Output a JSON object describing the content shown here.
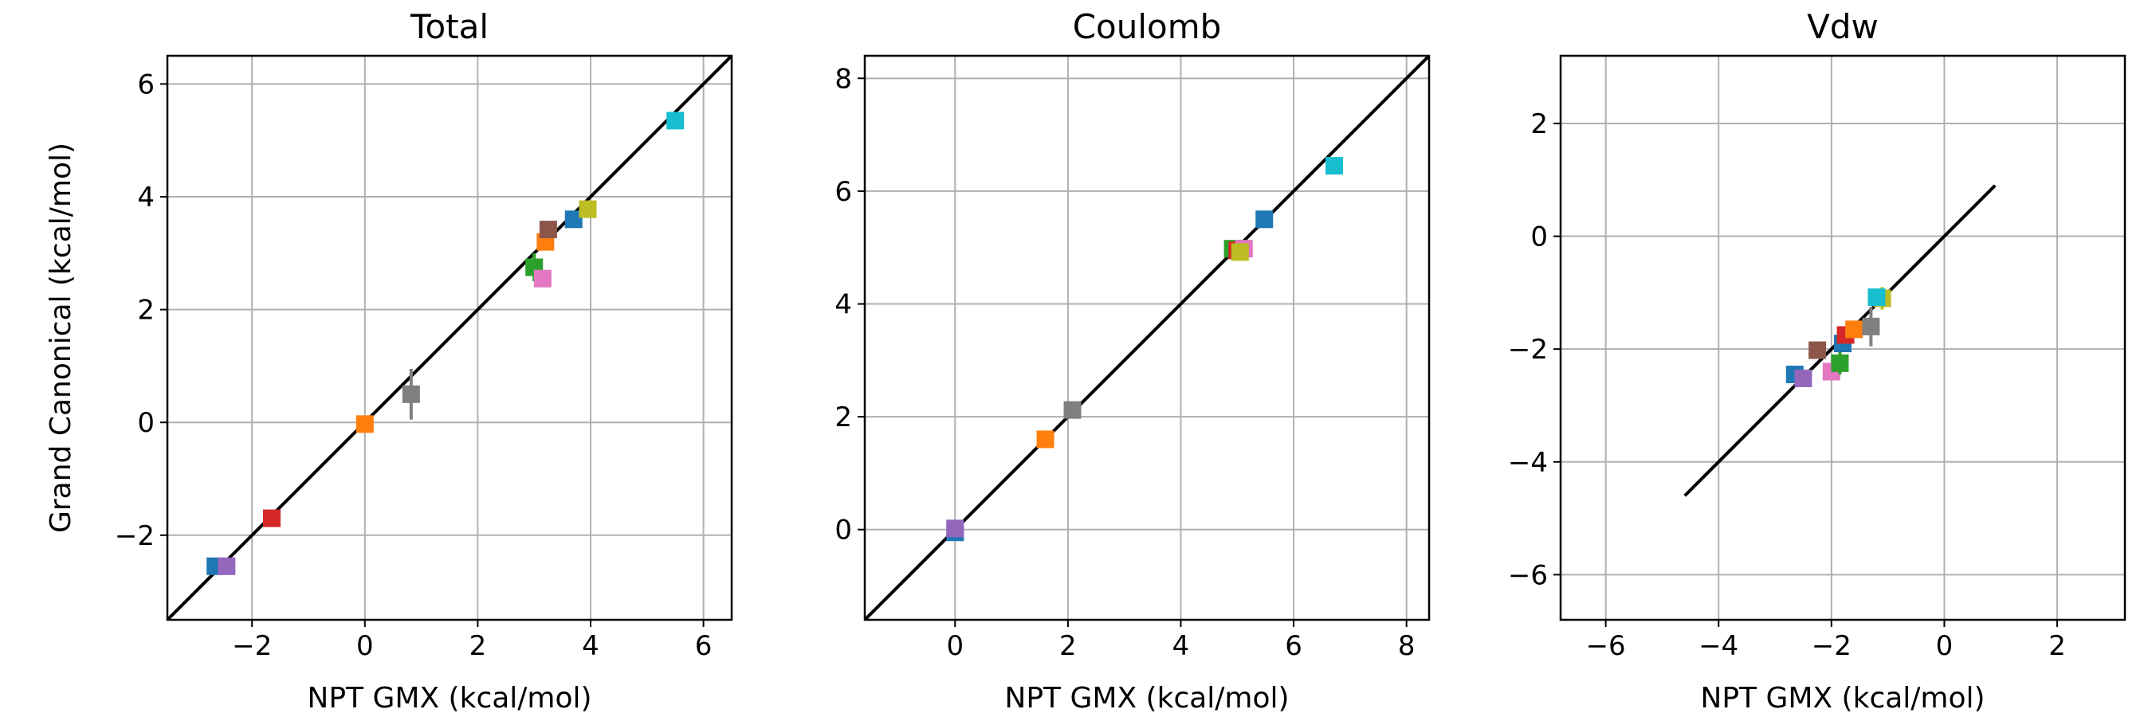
{
  "chart_data": [
    {
      "type": "scatter",
      "title": "Total",
      "xlabel": "NPT GMX (kcal/mol)",
      "ylabel": "Grand Canonical (kcal/mol)",
      "xlim": [
        -3.5,
        6.5
      ],
      "ylim": [
        -3.5,
        6.5
      ],
      "xticks": [
        -2,
        0,
        2,
        4,
        6
      ],
      "yticks": [
        -2,
        0,
        2,
        4,
        6
      ],
      "xtick_labels": [
        "−2",
        "0",
        "2",
        "4",
        "6"
      ],
      "ytick_labels": [
        "−2",
        "0",
        "2",
        "4",
        "6"
      ],
      "grid": true,
      "marker": "square",
      "reference_line": {
        "x": [
          -3.5,
          6.5
        ],
        "y": [
          -3.5,
          6.5
        ]
      },
      "points": [
        {
          "x": -2.65,
          "y": -2.55,
          "yerr": 0.05,
          "color": "#1f77b4"
        },
        {
          "x": -2.45,
          "y": -2.55,
          "yerr": 0.05,
          "color": "#9467bd"
        },
        {
          "x": -1.65,
          "y": -1.7,
          "yerr": 0.05,
          "color": "#d62728"
        },
        {
          "x": 0.0,
          "y": -0.03,
          "yerr": 0.05,
          "color": "#ff7f0e"
        },
        {
          "x": 0.82,
          "y": 0.5,
          "yerr": 0.45,
          "color": "#7f7f7f"
        },
        {
          "x": 3.0,
          "y": 2.75,
          "yerr": 0.25,
          "color": "#2ca02c"
        },
        {
          "x": 3.15,
          "y": 2.55,
          "yerr": 0.1,
          "color": "#e377c2"
        },
        {
          "x": 3.2,
          "y": 3.2,
          "yerr": 0.1,
          "color": "#ff7f0e"
        },
        {
          "x": 3.25,
          "y": 3.42,
          "yerr": 0.1,
          "color": "#8c564b"
        },
        {
          "x": 3.7,
          "y": 3.6,
          "yerr": 0.05,
          "color": "#1f77b4"
        },
        {
          "x": 3.95,
          "y": 3.78,
          "yerr": 0.15,
          "color": "#bcbd22"
        },
        {
          "x": 5.5,
          "y": 5.35,
          "yerr": 0.05,
          "color": "#17becf"
        }
      ]
    },
    {
      "type": "scatter",
      "title": "Coulomb",
      "xlabel": "NPT GMX (kcal/mol)",
      "ylabel": "",
      "xlim": [
        -1.6,
        8.4
      ],
      "ylim": [
        -1.6,
        8.4
      ],
      "xticks": [
        0,
        2,
        4,
        6,
        8
      ],
      "yticks": [
        0,
        2,
        4,
        6,
        8
      ],
      "xtick_labels": [
        "0",
        "2",
        "4",
        "6",
        "8"
      ],
      "ytick_labels": [
        "0",
        "2",
        "4",
        "6",
        "8"
      ],
      "grid": true,
      "marker": "square",
      "reference_line": {
        "x": [
          -1.6,
          8.4
        ],
        "y": [
          -1.6,
          8.4
        ]
      },
      "points": [
        {
          "x": 0.0,
          "y": -0.05,
          "yerr": 0.05,
          "color": "#1f77b4"
        },
        {
          "x": 0.0,
          "y": 0.02,
          "yerr": 0.05,
          "color": "#9467bd"
        },
        {
          "x": 1.6,
          "y": 1.6,
          "yerr": 0.05,
          "color": "#ff7f0e"
        },
        {
          "x": 2.08,
          "y": 2.12,
          "yerr": 0.05,
          "color": "#7f7f7f"
        },
        {
          "x": 4.92,
          "y": 4.98,
          "yerr": 0.1,
          "color": "#2ca02c"
        },
        {
          "x": 5.0,
          "y": 4.95,
          "yerr": 0.05,
          "color": "#d62728"
        },
        {
          "x": 5.12,
          "y": 4.98,
          "yerr": 0.1,
          "color": "#e377c2"
        },
        {
          "x": 5.05,
          "y": 4.92,
          "yerr": 0.15,
          "color": "#bcbd22"
        },
        {
          "x": 5.48,
          "y": 5.5,
          "yerr": 0.05,
          "color": "#1f77b4"
        },
        {
          "x": 6.72,
          "y": 6.45,
          "yerr": 0.1,
          "color": "#17becf"
        }
      ]
    },
    {
      "type": "scatter",
      "title": "Vdw",
      "xlabel": "NPT GMX (kcal/mol)",
      "ylabel": "",
      "xlim": [
        -6.8,
        3.2
      ],
      "ylim": [
        -6.8,
        3.2
      ],
      "xticks": [
        -6,
        -4,
        -2,
        0,
        2
      ],
      "yticks": [
        -6,
        -4,
        -2,
        0,
        2
      ],
      "xtick_labels": [
        "−6",
        "−4",
        "−2",
        "0",
        "2"
      ],
      "ytick_labels": [
        "−6",
        "−4",
        "−2",
        "0",
        "2"
      ],
      "grid": true,
      "marker": "square",
      "reference_line": {
        "x": [
          -4.6,
          0.9
        ],
        "y": [
          -4.6,
          0.9
        ]
      },
      "points": [
        {
          "x": -2.65,
          "y": -2.45,
          "yerr": 0.05,
          "color": "#1f77b4"
        },
        {
          "x": -2.5,
          "y": -2.52,
          "yerr": 0.05,
          "color": "#9467bd"
        },
        {
          "x": -2.25,
          "y": -2.02,
          "yerr": 0.05,
          "color": "#8c564b"
        },
        {
          "x": -2.0,
          "y": -2.4,
          "yerr": 0.1,
          "color": "#e377c2"
        },
        {
          "x": -1.85,
          "y": -2.25,
          "yerr": 0.2,
          "color": "#2ca02c"
        },
        {
          "x": -1.8,
          "y": -1.9,
          "yerr": 0.1,
          "color": "#1f77b4"
        },
        {
          "x": -1.75,
          "y": -1.75,
          "yerr": 0.1,
          "color": "#d62728"
        },
        {
          "x": -1.6,
          "y": -1.65,
          "yerr": 0.1,
          "color": "#ff7f0e"
        },
        {
          "x": -1.3,
          "y": -1.6,
          "yerr": 0.35,
          "color": "#7f7f7f"
        },
        {
          "x": -1.1,
          "y": -1.1,
          "yerr": 0.2,
          "color": "#bcbd22"
        },
        {
          "x": -1.2,
          "y": -1.08,
          "yerr": 0.1,
          "color": "#17becf"
        }
      ]
    }
  ]
}
